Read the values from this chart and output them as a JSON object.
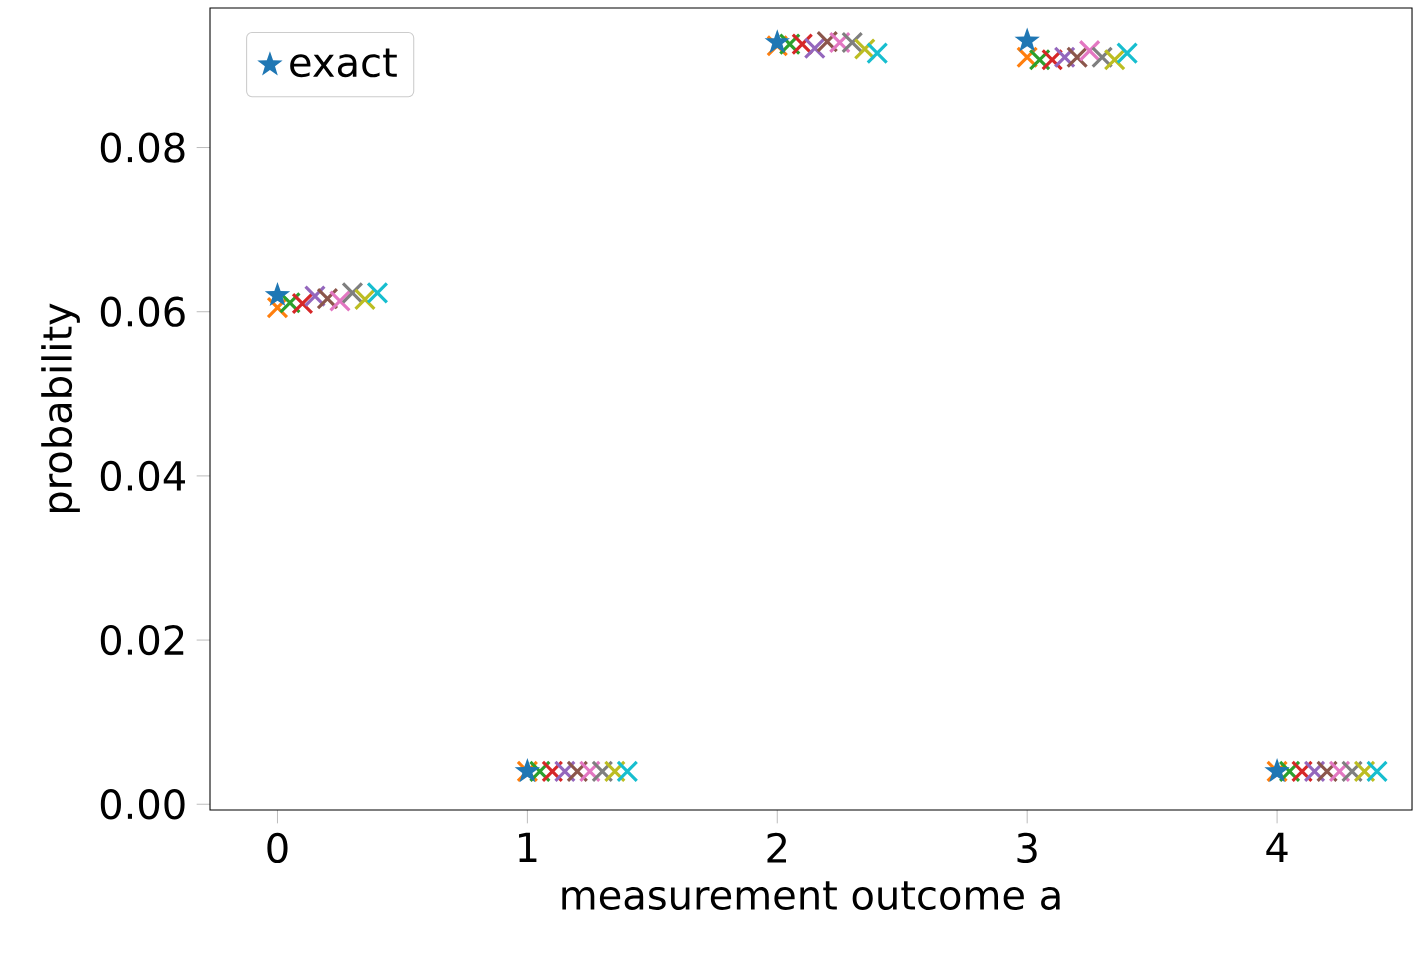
{
  "chart_data": {
    "type": "scatter",
    "xlabel": "measurement outcome a",
    "ylabel": "probability",
    "xlim": [
      -0.27,
      4.54
    ],
    "ylim": [
      -0.0007,
      0.097
    ],
    "xticks": [
      0,
      1,
      2,
      3,
      4
    ],
    "yticks": [
      {
        "value": 0,
        "label": "0.00"
      },
      {
        "value": 0.02,
        "label": "0.02"
      },
      {
        "value": 0.04,
        "label": "0.04"
      },
      {
        "value": 0.06,
        "label": "0.06"
      },
      {
        "value": 0.08,
        "label": "0.08"
      }
    ],
    "legend": "top left",
    "grid": false,
    "series": [
      {
        "name": "exact",
        "color": "#1f77b4",
        "marker": "star",
        "x": [
          0,
          1,
          2,
          3,
          4
        ],
        "values": [
          0.062,
          0.004,
          0.0928,
          0.093,
          0.004
        ]
      },
      {
        "color": "#ff7f0e",
        "marker": "cross",
        "x": [
          0,
          1,
          2,
          3,
          4
        ],
        "values": [
          0.0605,
          0.004,
          0.0924,
          0.091,
          0.004
        ]
      },
      {
        "color": "#2ca02c",
        "marker": "cross",
        "x": [
          0.05,
          1.05,
          2.05,
          3.05,
          4.05
        ],
        "values": [
          0.0611,
          0.004,
          0.0926,
          0.0907,
          0.004
        ]
      },
      {
        "color": "#d62728",
        "marker": "cross",
        "x": [
          0.1,
          1.1,
          2.1,
          3.1,
          4.1
        ],
        "values": [
          0.061,
          0.004,
          0.0926,
          0.0907,
          0.004
        ]
      },
      {
        "color": "#9467bd",
        "marker": "cross",
        "x": [
          0.15,
          1.15,
          2.15,
          3.15,
          4.15
        ],
        "values": [
          0.0619,
          0.004,
          0.0921,
          0.091,
          0.004
        ]
      },
      {
        "color": "#8c564b",
        "marker": "cross",
        "x": [
          0.2,
          1.2,
          2.2,
          3.2,
          4.2
        ],
        "values": [
          0.0616,
          0.004,
          0.0929,
          0.091,
          0.004
        ]
      },
      {
        "color": "#e377c2",
        "marker": "cross",
        "x": [
          0.25,
          1.25,
          2.25,
          3.25,
          4.25
        ],
        "values": [
          0.0613,
          0.004,
          0.0928,
          0.0918,
          0.004
        ]
      },
      {
        "color": "#7f7f7f",
        "marker": "cross",
        "x": [
          0.3,
          1.3,
          2.3,
          3.3,
          4.3
        ],
        "values": [
          0.0623,
          0.004,
          0.0928,
          0.091,
          0.004
        ]
      },
      {
        "color": "#bcbd22",
        "marker": "cross",
        "x": [
          0.35,
          1.35,
          2.35,
          3.35,
          4.35
        ],
        "values": [
          0.0615,
          0.004,
          0.092,
          0.0907,
          0.004
        ]
      },
      {
        "color": "#17becf",
        "marker": "cross",
        "x": [
          0.4,
          1.4,
          2.4,
          3.4,
          4.4
        ],
        "values": [
          0.0623,
          0.004,
          0.0915,
          0.0915,
          0.004
        ]
      }
    ]
  }
}
